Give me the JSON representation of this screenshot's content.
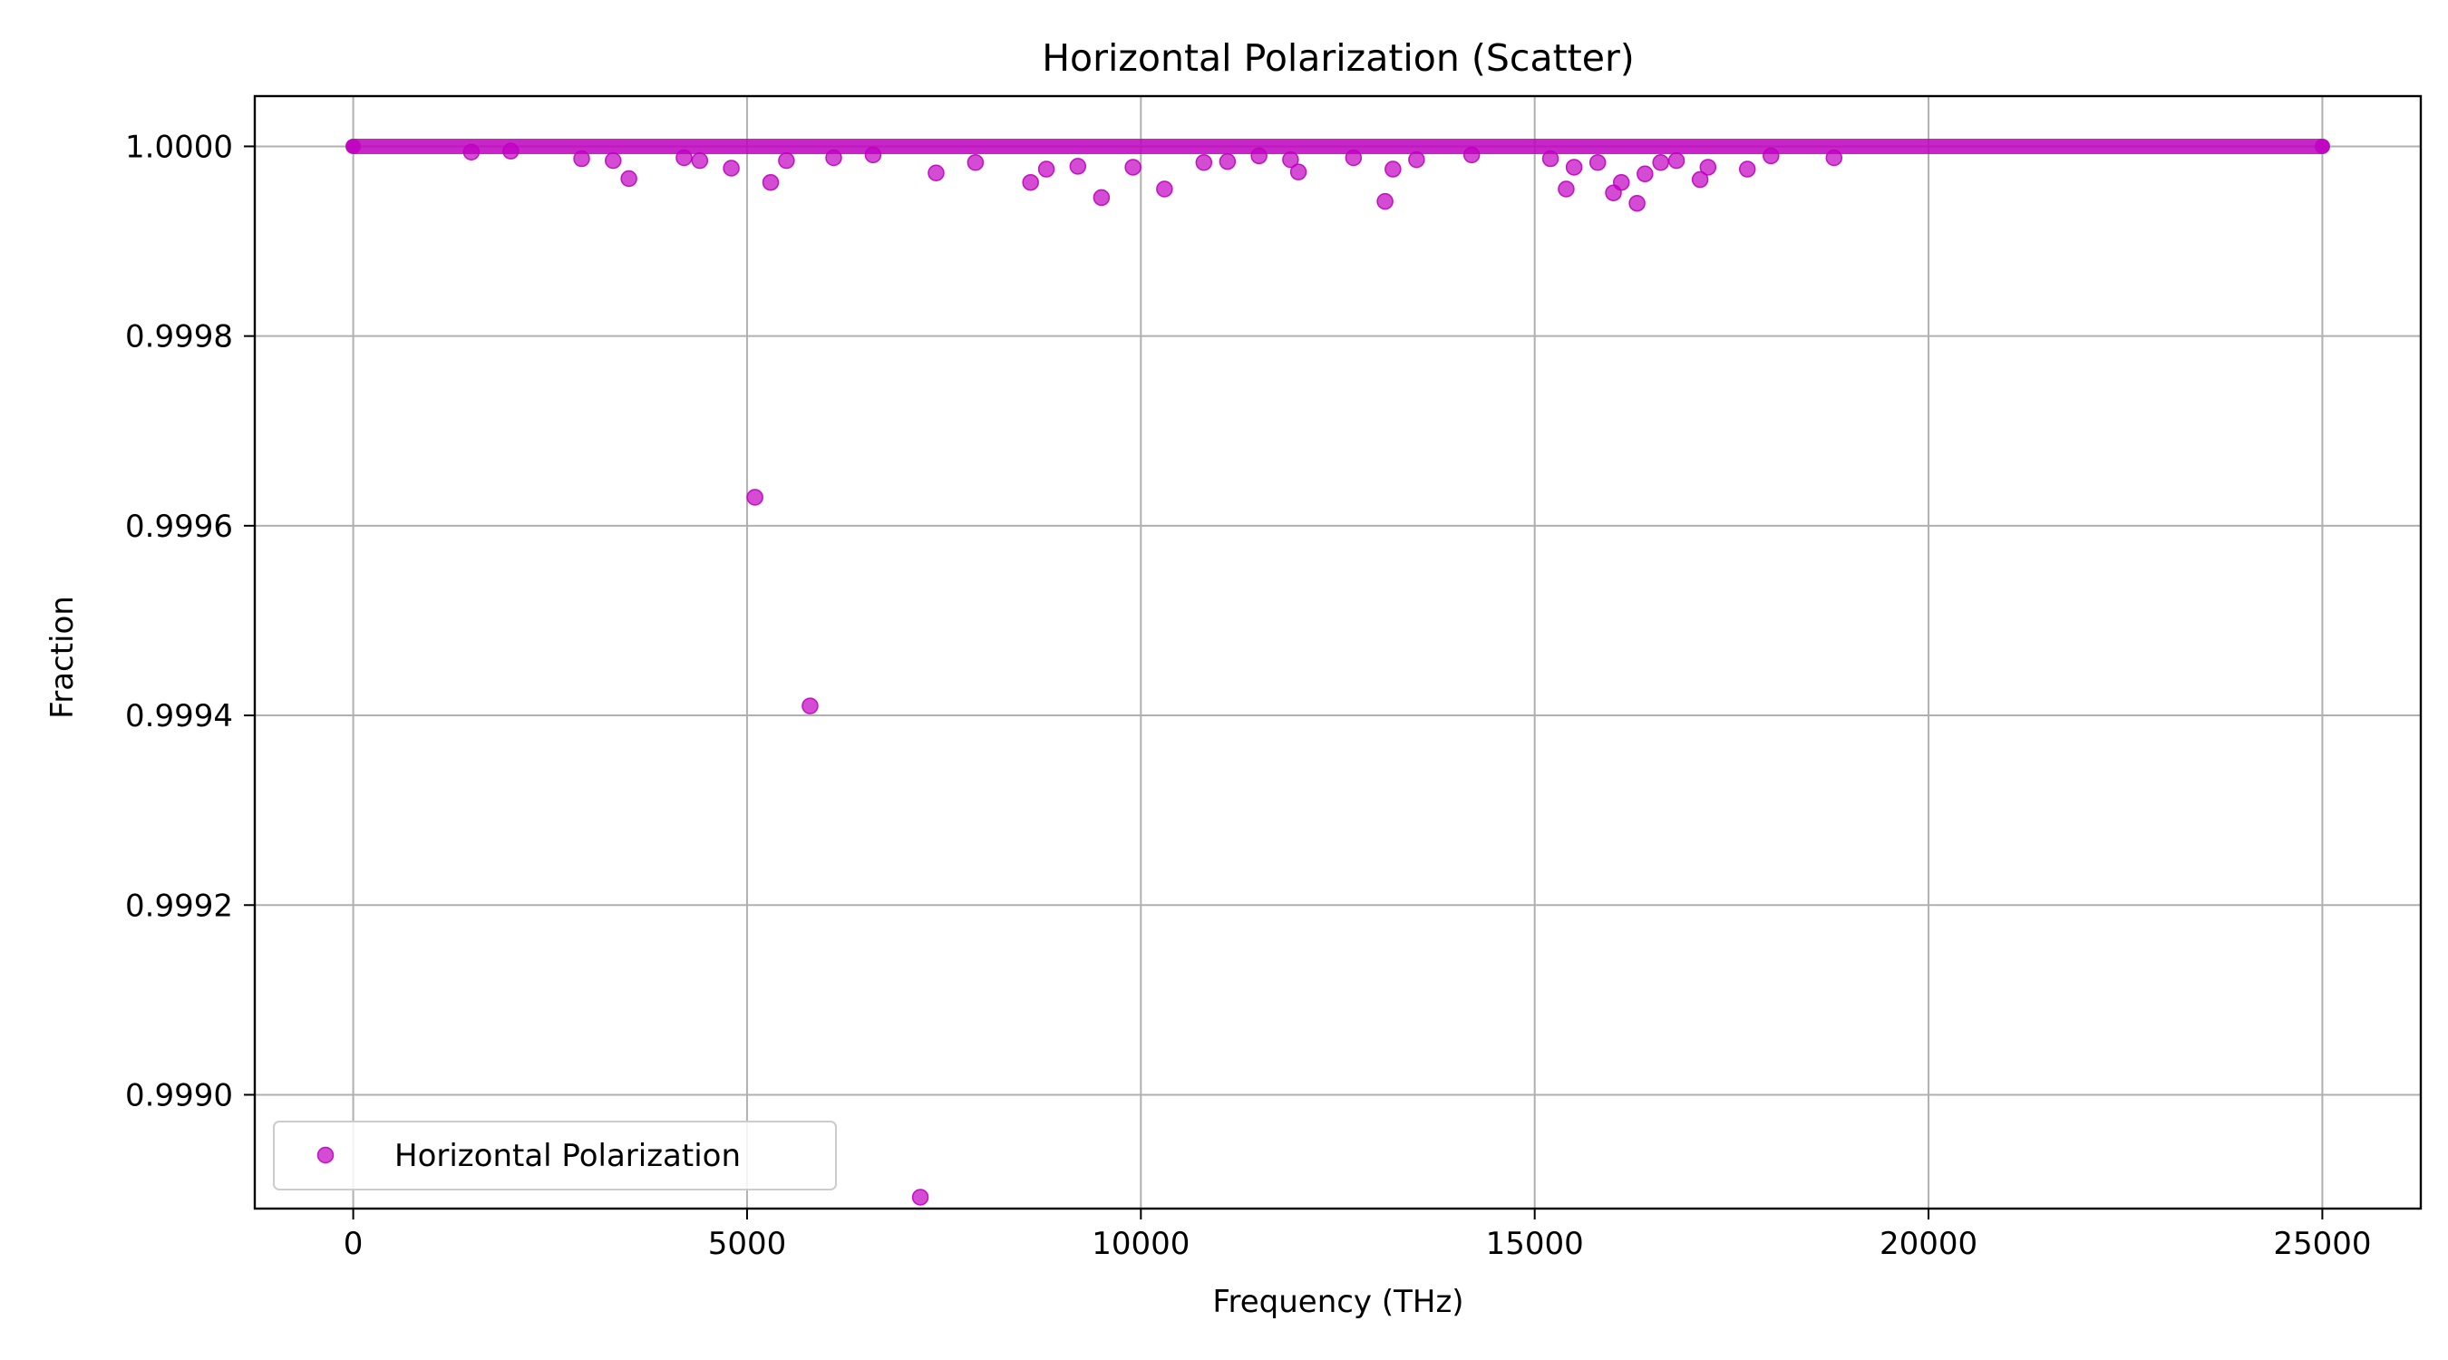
{
  "chart_data": {
    "type": "scatter",
    "title": "Horizontal Polarization (Scatter)",
    "xlabel": "Frequency (THz)",
    "ylabel": "Fraction",
    "xlim": [
      -1250,
      26250
    ],
    "ylim": [
      0.99888,
      1.000053
    ],
    "x_ticks": [
      0,
      5000,
      10000,
      15000,
      20000,
      25000
    ],
    "x_tick_labels": [
      "0",
      "5000",
      "10000",
      "15000",
      "20000",
      "25000"
    ],
    "y_ticks": [
      0.999,
      0.9992,
      0.9994,
      0.9996,
      0.9998,
      1.0
    ],
    "y_tick_labels": [
      "0.9990",
      "0.9992",
      "0.9994",
      "0.9996",
      "0.9998",
      "1.0000"
    ],
    "grid": true,
    "legend_position": "lower-left",
    "colors": {
      "marker": "#c000c0",
      "grid": "#b0b0b0",
      "axes": "#000000"
    },
    "series": [
      {
        "name": "Horizontal Polarization",
        "baseline": {
          "x_start": 0,
          "x_end": 25000,
          "y": 1.0
        },
        "points": [
          [
            3500,
            0.999966
          ],
          [
            2900,
            0.999987
          ],
          [
            3300,
            0.999985
          ],
          [
            4200,
            0.999988
          ],
          [
            4800,
            0.999977
          ],
          [
            5100,
            0.99963
          ],
          [
            5300,
            0.999962
          ],
          [
            5500,
            0.999985
          ],
          [
            5800,
            0.99941
          ],
          [
            6100,
            0.999988
          ],
          [
            7200,
            0.998892
          ],
          [
            7400,
            0.999972
          ],
          [
            7900,
            0.999983
          ],
          [
            8600,
            0.999962
          ],
          [
            8800,
            0.999976
          ],
          [
            9200,
            0.999979
          ],
          [
            9500,
            0.999946
          ],
          [
            9900,
            0.999978
          ],
          [
            10300,
            0.999955
          ],
          [
            10800,
            0.999983
          ],
          [
            11100,
            0.999984
          ],
          [
            11900,
            0.999986
          ],
          [
            12000,
            0.999973
          ],
          [
            12700,
            0.999988
          ],
          [
            13100,
            0.999942
          ],
          [
            13200,
            0.999976
          ],
          [
            13500,
            0.999986
          ],
          [
            15200,
            0.999987
          ],
          [
            15400,
            0.999955
          ],
          [
            15500,
            0.999978
          ],
          [
            15800,
            0.999983
          ],
          [
            16000,
            0.999951
          ],
          [
            16100,
            0.999962
          ],
          [
            16300,
            0.99994
          ],
          [
            16400,
            0.999971
          ],
          [
            16600,
            0.999983
          ],
          [
            16800,
            0.999985
          ],
          [
            17100,
            0.999965
          ],
          [
            17200,
            0.999978
          ],
          [
            17700,
            0.999976
          ],
          [
            18000,
            0.99999
          ],
          [
            18800,
            0.999988
          ],
          [
            1500,
            0.999994
          ],
          [
            2000,
            0.999995
          ],
          [
            4400,
            0.999985
          ],
          [
            6600,
            0.999991
          ],
          [
            11500,
            0.99999
          ],
          [
            14200,
            0.999991
          ]
        ]
      }
    ]
  }
}
